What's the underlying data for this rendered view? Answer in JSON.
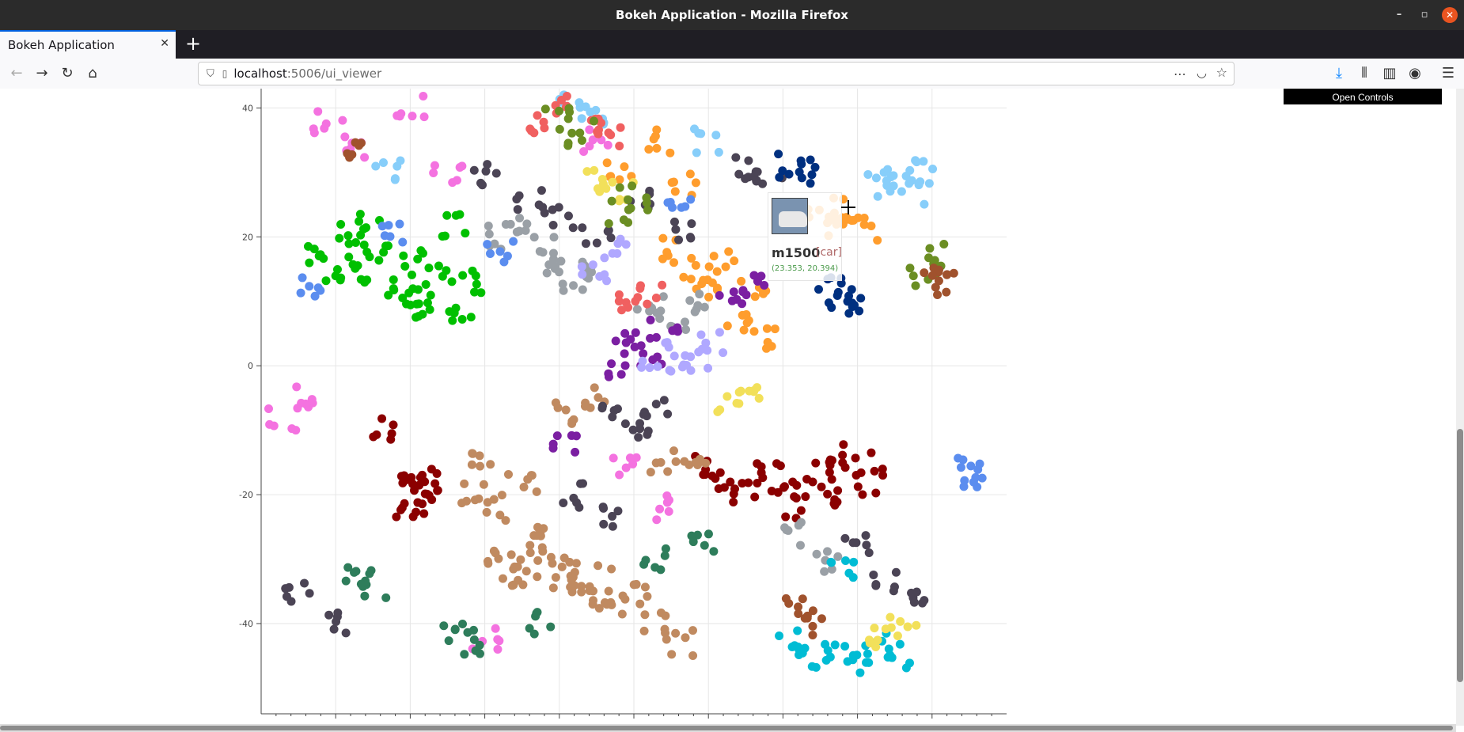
{
  "window": {
    "title": "Bokeh Application - Mozilla Firefox"
  },
  "tab": {
    "title": "Bokeh Application"
  },
  "url": {
    "host": "localhost",
    "path": ":5006/ui_viewer"
  },
  "controls": {
    "open_label": "Open Controls"
  },
  "tooltip": {
    "name": "m1500",
    "label": "[car]",
    "coords": "(23.353, 20.394)"
  },
  "chart_data": {
    "type": "scatter",
    "title": "",
    "xlabel": "",
    "ylabel": "",
    "y_ticks": [
      "40",
      "20",
      "0",
      "-20",
      "-40"
    ],
    "xlim": [
      -50,
      50
    ],
    "ylim": [
      -54,
      43
    ],
    "grid": true,
    "series": [
      {
        "color": "#00c000",
        "points": [
          [
            -42,
            17
          ],
          [
            -40,
            15
          ],
          [
            -38,
            20
          ],
          [
            -36,
            14
          ],
          [
            -34,
            18
          ],
          [
            -32,
            12
          ],
          [
            -30,
            16
          ],
          [
            -28,
            10
          ],
          [
            -26,
            14
          ],
          [
            -24,
            22
          ],
          [
            -23,
            9
          ],
          [
            -21,
            13
          ],
          [
            -35,
            22
          ],
          [
            -29,
            8
          ]
        ]
      },
      {
        "color": "#8b0000",
        "points": [
          [
            -31,
            -19
          ],
          [
            -29,
            -21
          ],
          [
            -27,
            -18
          ],
          [
            -30,
            -23
          ],
          [
            -28,
            -17
          ],
          [
            10,
            -15
          ],
          [
            12,
            -18
          ],
          [
            15,
            -20
          ],
          [
            18,
            -16
          ],
          [
            20,
            -19
          ],
          [
            22,
            -22
          ],
          [
            25,
            -17
          ],
          [
            27,
            -20
          ],
          [
            30,
            -15
          ],
          [
            32,
            -18
          ],
          [
            -33,
            -10
          ],
          [
            28,
            -14
          ]
        ]
      },
      {
        "color": "#c08a60",
        "points": [
          [
            -18,
            -30
          ],
          [
            -16,
            -33
          ],
          [
            -14,
            -31
          ],
          [
            -12,
            -29
          ],
          [
            -10,
            -34
          ],
          [
            -8,
            -31
          ],
          [
            -6,
            -36
          ],
          [
            -4,
            -33
          ],
          [
            -2,
            -37
          ],
          [
            0,
            -35
          ],
          [
            -22,
            -20
          ],
          [
            -19,
            -22
          ],
          [
            -15,
            -18
          ],
          [
            -12,
            -25
          ],
          [
            -20,
            -14
          ],
          [
            4,
            -15
          ],
          [
            8,
            -16
          ],
          [
            6,
            -43
          ],
          [
            3,
            -40
          ],
          [
            -9,
            -7
          ],
          [
            -5,
            -5
          ]
        ]
      },
      {
        "color": "#ff9d2d",
        "points": [
          [
            5,
            18
          ],
          [
            8,
            15
          ],
          [
            10,
            11
          ],
          [
            12,
            16
          ],
          [
            14,
            7
          ],
          [
            16,
            12
          ],
          [
            18,
            4
          ],
          [
            25,
            25
          ],
          [
            27,
            22
          ],
          [
            29,
            24
          ],
          [
            31,
            21
          ],
          [
            -2,
            30
          ],
          [
            3,
            35
          ],
          [
            7,
            28
          ]
        ]
      },
      {
        "color": "#87cefa",
        "points": [
          [
            33,
            28
          ],
          [
            35,
            29
          ],
          [
            37,
            27
          ],
          [
            39,
            30
          ],
          [
            -8,
            42
          ],
          [
            -6,
            38
          ],
          [
            10,
            35
          ],
          [
            -33,
            30
          ]
        ]
      },
      {
        "color": "#4b4455",
        "points": [
          [
            -20,
            30
          ],
          [
            -14,
            26
          ],
          [
            -10,
            23
          ],
          [
            -5,
            20
          ],
          [
            1,
            26
          ],
          [
            6,
            21
          ],
          [
            15,
            31
          ],
          [
            18,
            30
          ],
          [
            -3,
            -8
          ],
          [
            0,
            -10
          ],
          [
            3,
            -6
          ],
          [
            -8,
            -20
          ],
          [
            -4,
            -23
          ],
          [
            30,
            -28
          ],
          [
            34,
            -33
          ],
          [
            37,
            -37
          ],
          [
            -45,
            -35
          ],
          [
            -39,
            -40
          ]
        ]
      },
      {
        "color": "#f472e0",
        "points": [
          [
            -41,
            38
          ],
          [
            -37,
            34
          ],
          [
            -30,
            40
          ],
          [
            -25,
            30
          ],
          [
            -47,
            -8
          ],
          [
            -44,
            -5
          ],
          [
            -1,
            -15
          ],
          [
            5,
            -22
          ],
          [
            -20,
            -42
          ],
          [
            -5,
            35
          ]
        ]
      },
      {
        "color": "#9aa0a6",
        "points": [
          [
            -15,
            22
          ],
          [
            -12,
            18
          ],
          [
            -10,
            15
          ],
          [
            -8,
            13
          ],
          [
            -6,
            16
          ],
          [
            2,
            9
          ],
          [
            5,
            7
          ],
          [
            8,
            10
          ],
          [
            -18,
            20
          ],
          [
            22,
            -26
          ],
          [
            26,
            -30
          ]
        ]
      },
      {
        "color": "#7b1fa2",
        "points": [
          [
            -1,
            5
          ],
          [
            2,
            2
          ],
          [
            4,
            6
          ],
          [
            -3,
            0
          ],
          [
            13,
            10
          ],
          [
            16,
            13
          ],
          [
            -9,
            -12
          ]
        ]
      },
      {
        "color": "#00bcd4",
        "points": [
          [
            21,
            -43
          ],
          [
            24,
            -45
          ],
          [
            27,
            -44
          ],
          [
            30,
            -46
          ],
          [
            33,
            -43
          ],
          [
            35,
            -45
          ],
          [
            28,
            -32
          ]
        ]
      },
      {
        "color": "#2e7d5b",
        "points": [
          [
            -37,
            -33
          ],
          [
            -35,
            -34
          ],
          [
            -24,
            -42
          ],
          [
            -22,
            -43
          ],
          [
            -12,
            -40
          ],
          [
            3,
            -30
          ],
          [
            9,
            -27
          ]
        ]
      },
      {
        "color": "#003080",
        "points": [
          [
            26,
            12
          ],
          [
            28,
            11
          ],
          [
            30,
            10
          ],
          [
            23,
            30
          ],
          [
            21,
            31
          ]
        ]
      },
      {
        "color": "#f06060",
        "points": [
          [
            -12,
            38
          ],
          [
            -9,
            40
          ],
          [
            -6,
            37
          ],
          [
            -3,
            36
          ],
          [
            0,
            10
          ],
          [
            2,
            12
          ]
        ]
      },
      {
        "color": "#b0a8ff",
        "points": [
          [
            3,
            0
          ],
          [
            6,
            2
          ],
          [
            8,
            1
          ],
          [
            10,
            4
          ],
          [
            -5,
            15
          ],
          [
            -3,
            18
          ]
        ]
      },
      {
        "color": "#f2e05a",
        "points": [
          [
            -5,
            29
          ],
          [
            -2,
            27
          ],
          [
            13,
            -6
          ],
          [
            15,
            -4
          ],
          [
            32,
            -42
          ],
          [
            36,
            -40
          ]
        ]
      },
      {
        "color": "#6b8e23",
        "points": [
          [
            -10,
            38
          ],
          [
            -7,
            36
          ],
          [
            -2,
            24
          ],
          [
            0,
            26
          ],
          [
            39,
            14
          ],
          [
            41,
            17
          ]
        ]
      },
      {
        "color": "#a0522d",
        "points": [
          [
            40,
            14
          ],
          [
            42,
            13
          ],
          [
            -37,
            33
          ],
          [
            22,
            -38
          ],
          [
            24,
            -40
          ]
        ]
      },
      {
        "color": "#5b8def",
        "points": [
          [
            -44,
            12
          ],
          [
            -32,
            20
          ],
          [
            -18,
            18
          ],
          [
            6,
            25
          ],
          [
            45,
            -16
          ],
          [
            46,
            -18
          ]
        ]
      }
    ]
  }
}
